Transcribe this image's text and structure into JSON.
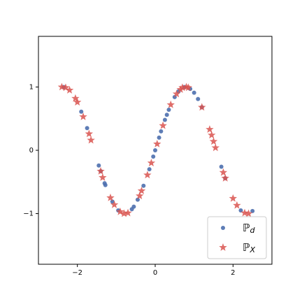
{
  "chart_data": {
    "type": "scatter",
    "xlim": [
      -3,
      3
    ],
    "ylim": [
      -1.8,
      1.8
    ],
    "xticks": [
      {
        "value": -2,
        "label": "−2"
      },
      0,
      2
    ],
    "yticks": [
      {
        "value": -1,
        "label": "−1"
      },
      0,
      1
    ],
    "grid": false,
    "legend": "lower right",
    "series": [
      {
        "name": "ℙd",
        "color": "#4c6fae",
        "marker": "circle",
        "x": [
          -2.35,
          -1.9,
          -1.75,
          -1.45,
          -1.4,
          -1.3,
          -1.28,
          -1.1,
          -0.95,
          -0.6,
          -0.55,
          -0.45,
          -0.3,
          -0.15,
          -0.05,
          0,
          0.1,
          0.15,
          0.25,
          0.3,
          0.35,
          0.5,
          0.6,
          0.75,
          0.9,
          1.0,
          1.1,
          1.2,
          1.7,
          1.8,
          2.2,
          2.5
        ],
        "values": [
          1.0,
          0.61,
          0.35,
          -0.24,
          -0.33,
          -0.52,
          -0.55,
          -0.81,
          -0.95,
          -0.93,
          -0.89,
          -0.78,
          -0.56,
          -0.3,
          -0.1,
          0,
          0.2,
          0.3,
          0.48,
          0.56,
          0.64,
          0.84,
          0.93,
          1.0,
          0.97,
          0.91,
          0.81,
          0.68,
          -0.26,
          -0.44,
          -0.95,
          -0.96
        ]
      },
      {
        "name": "ℙX",
        "color": "#d9534f",
        "marker": "star",
        "x": [
          -2.4,
          -2.3,
          -2.2,
          -2.05,
          -2.0,
          -1.85,
          -1.7,
          -1.65,
          -1.4,
          -1.35,
          -1.15,
          -1.05,
          -0.9,
          -0.8,
          -0.7,
          -0.4,
          -0.35,
          -0.2,
          -0.1,
          0.05,
          0.2,
          0.4,
          0.55,
          0.65,
          0.7,
          0.8,
          0.85,
          1.2,
          1.4,
          1.45,
          1.5,
          1.55,
          1.75,
          1.8,
          2.0,
          2.1,
          2.3,
          2.4
        ],
        "values": [
          1.0,
          0.99,
          0.95,
          0.82,
          0.76,
          0.53,
          0.26,
          0.16,
          -0.33,
          -0.43,
          -0.75,
          -0.86,
          -0.97,
          -1.0,
          -0.99,
          -0.72,
          -0.64,
          -0.39,
          -0.2,
          0.1,
          0.39,
          0.72,
          0.89,
          0.96,
          0.99,
          1.0,
          0.99,
          0.68,
          0.33,
          0.24,
          0.14,
          0.04,
          -0.35,
          -0.44,
          -0.76,
          -0.87,
          -0.99,
          -1.0
        ]
      }
    ]
  }
}
